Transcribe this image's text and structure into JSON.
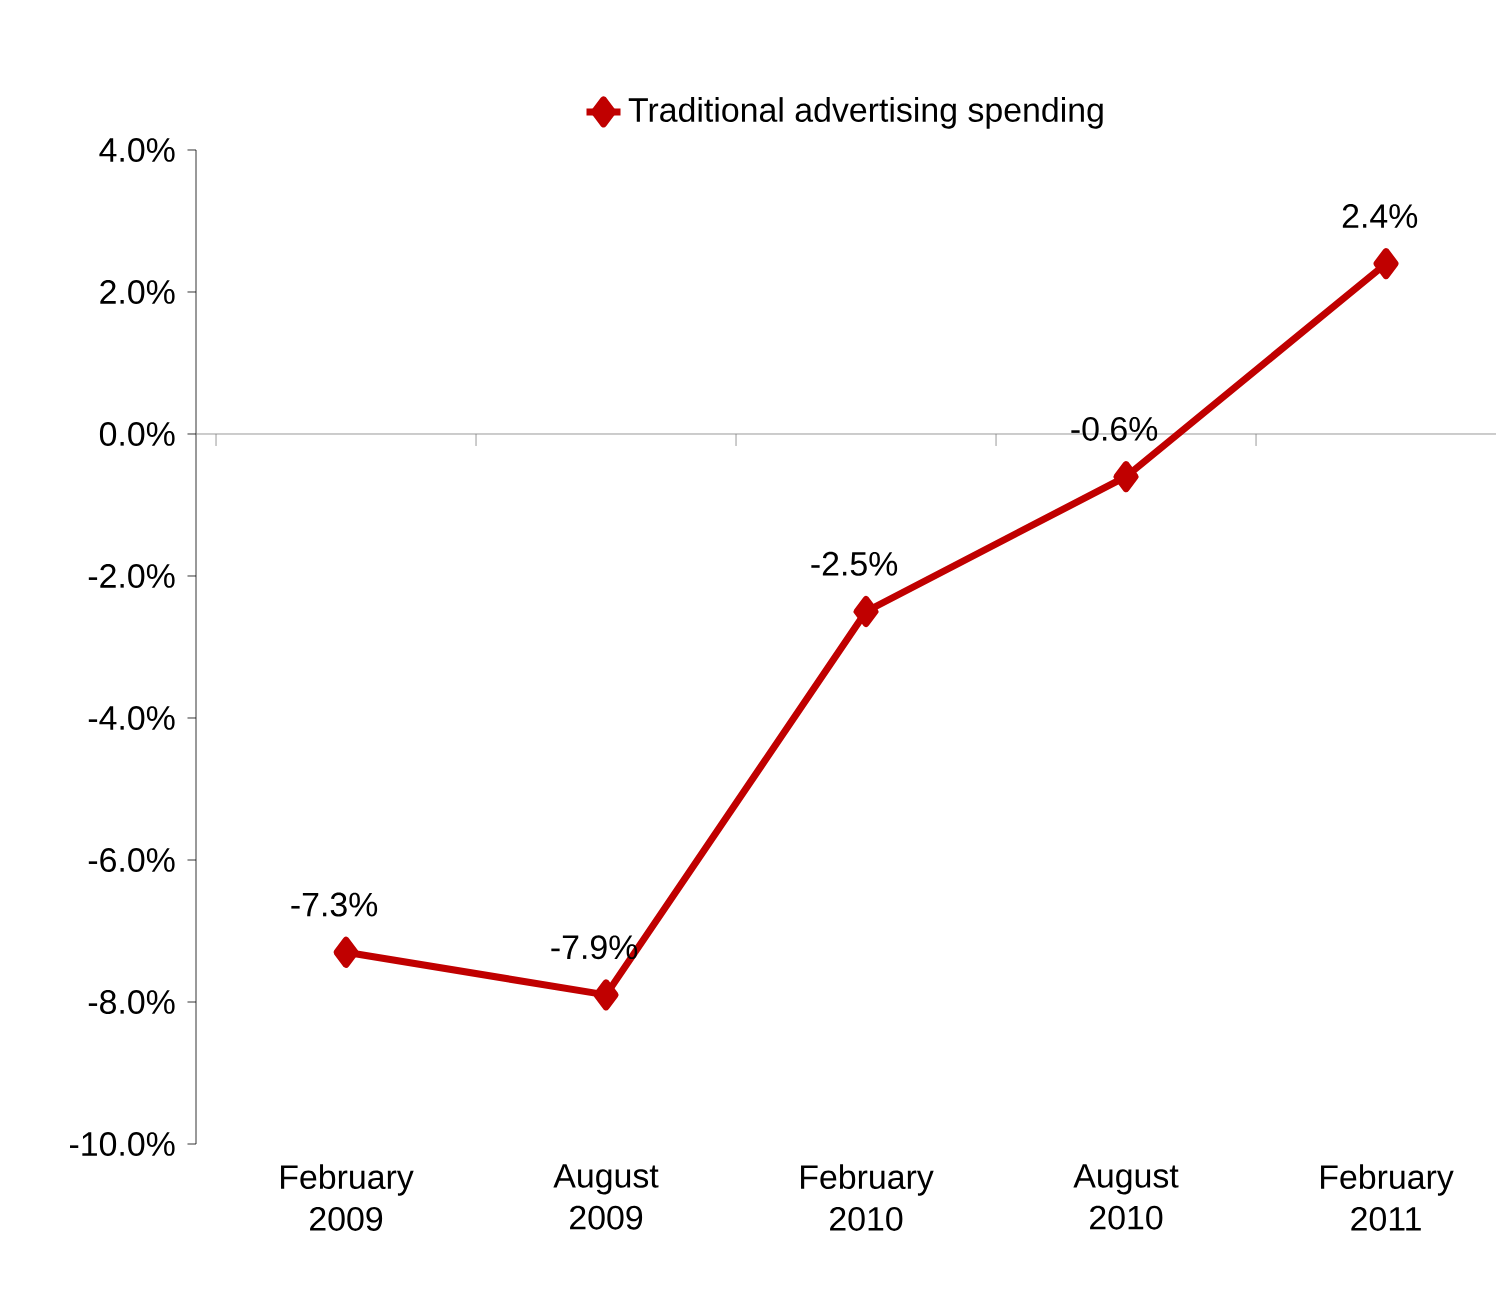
{
  "chart_data": {
    "type": "line",
    "categories": [
      "February 2009",
      "August 2009",
      "February 2010",
      "August 2010",
      "February 2011"
    ],
    "series": [
      {
        "name": "Traditional advertising spending",
        "color": "#c00000",
        "values": [
          -7.3,
          -7.9,
          -2.5,
          -0.6,
          2.4
        ],
        "value_labels": [
          "-7.3%",
          "-7.9%",
          "-2.5%",
          "-0.6%",
          "2.4%"
        ]
      }
    ],
    "ylim": [
      -10,
      4
    ],
    "yticks": [
      {
        "value": -10,
        "label": "-10.0%"
      },
      {
        "value": -8,
        "label": "-8.0%"
      },
      {
        "value": -6,
        "label": "-6.0%"
      },
      {
        "value": -4,
        "label": "-4.0%"
      },
      {
        "value": -2,
        "label": "-2.0%"
      },
      {
        "value": 0,
        "label": "0.0%"
      },
      {
        "value": 2,
        "label": "2.0%"
      },
      {
        "value": 4,
        "label": "4.0%"
      }
    ],
    "ref_lines": [
      {
        "axis": "y",
        "value": 0,
        "color": "#808080"
      }
    ],
    "grid": false,
    "legend": "top",
    "marker": "diamond",
    "line_style": "solid"
  }
}
